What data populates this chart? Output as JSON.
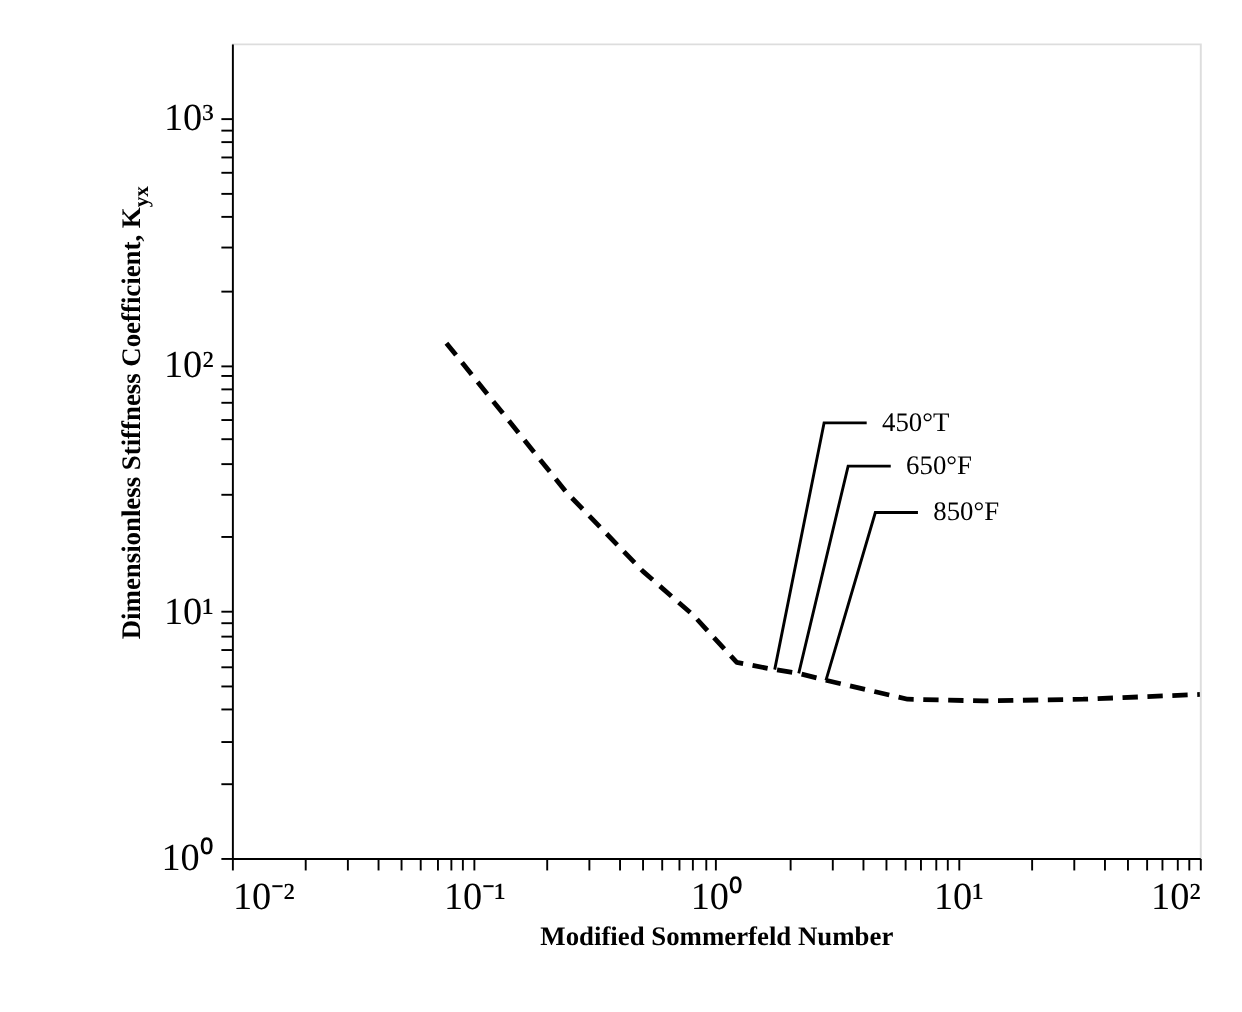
{
  "chart_data": {
    "type": "line",
    "xlabel": "Modified Sommerfeld Number",
    "ylabel": "Dimensionless Stiffness Coefficient, K$_{yx}$",
    "series": [
      {
        "color": "#000000",
        "x": [
          0.077,
          0.24,
          0.5,
          0.81,
          1.22,
          1.75,
          2.2,
          2.85,
          6.2,
          12.7,
          33,
          100
        ],
        "values": [
          122,
          30.5,
          14.5,
          9.6,
          6.2,
          5.8,
          5.6,
          5.25,
          4.4,
          4.33,
          4.4,
          4.6
        ]
      }
    ],
    "annotations": [
      {
        "text": "450°T",
        "x": 1.75,
        "y": 5.8
      },
      {
        "text": "650°F",
        "x": 2.2,
        "y": 5.6
      },
      {
        "text": "850°F",
        "x": 2.85,
        "y": 5.25
      }
    ],
    "log": "xy",
    "xlim": [
      0.01,
      100
    ],
    "ylim": [
      1,
      2000
    ],
    "xticks": [
      {
        "value": 0.01,
        "label": "10⁻²"
      },
      {
        "value": 0.02,
        "label": null
      },
      {
        "value": 0.03,
        "label": null
      },
      {
        "value": 0.04,
        "label": null
      },
      {
        "value": 0.05,
        "label": null
      },
      {
        "value": 0.06,
        "label": null
      },
      {
        "value": 0.07,
        "label": null
      },
      {
        "value": 0.08,
        "label": null
      },
      {
        "value": 0.09,
        "label": null
      },
      {
        "value": 0.1,
        "label": "10⁻¹"
      },
      {
        "value": 0.2,
        "label": null
      },
      {
        "value": 0.3,
        "label": null
      },
      {
        "value": 0.4,
        "label": null
      },
      {
        "value": 0.5,
        "label": null
      },
      {
        "value": 0.6,
        "label": null
      },
      {
        "value": 0.7,
        "label": null
      },
      {
        "value": 0.8,
        "label": null
      },
      {
        "value": 0.9,
        "label": null
      },
      {
        "value": 1,
        "label": "10⁰"
      },
      {
        "value": 2,
        "label": null
      },
      {
        "value": 3,
        "label": null
      },
      {
        "value": 4,
        "label": null
      },
      {
        "value": 5,
        "label": null
      },
      {
        "value": 6,
        "label": null
      },
      {
        "value": 7,
        "label": null
      },
      {
        "value": 8,
        "label": null
      },
      {
        "value": 9,
        "label": null
      },
      {
        "value": 10,
        "label": "10¹"
      },
      {
        "value": 20,
        "label": null
      },
      {
        "value": 30,
        "label": null
      },
      {
        "value": 40,
        "label": null
      },
      {
        "value": 50,
        "label": null
      },
      {
        "value": 60,
        "label": null
      },
      {
        "value": 70,
        "label": null
      },
      {
        "value": 80,
        "label": null
      },
      {
        "value": 90,
        "label": null
      },
      {
        "value": 100,
        "label": "10²"
      }
    ],
    "yticks": [
      {
        "value": 1,
        "label": "10⁰"
      },
      {
        "value": 2,
        "label": null
      },
      {
        "value": 3,
        "label": null
      },
      {
        "value": 4,
        "label": null
      },
      {
        "value": 5,
        "label": null
      },
      {
        "value": 6,
        "label": null
      },
      {
        "value": 7,
        "label": null
      },
      {
        "value": 8,
        "label": null
      },
      {
        "value": 9,
        "label": null
      },
      {
        "value": 10,
        "label": "10¹"
      },
      {
        "value": 20,
        "label": null
      },
      {
        "value": 30,
        "label": null
      },
      {
        "value": 40,
        "label": null
      },
      {
        "value": 50,
        "label": null
      },
      {
        "value": 60,
        "label": null
      },
      {
        "value": 70,
        "label": null
      },
      {
        "value": 80,
        "label": null
      },
      {
        "value": 90,
        "label": null
      },
      {
        "value": 100,
        "label": "10²"
      },
      {
        "value": 200,
        "label": null
      },
      {
        "value": 300,
        "label": null
      },
      {
        "value": 400,
        "label": null
      },
      {
        "value": 500,
        "label": null
      },
      {
        "value": 600,
        "label": null
      },
      {
        "value": 700,
        "label": null
      },
      {
        "value": 800,
        "label": null
      },
      {
        "value": 900,
        "label": null
      },
      {
        "value": 1000,
        "label": "10³"
      }
    ],
    "grid": false,
    "marker": "none",
    "line_style": "dashed"
  }
}
